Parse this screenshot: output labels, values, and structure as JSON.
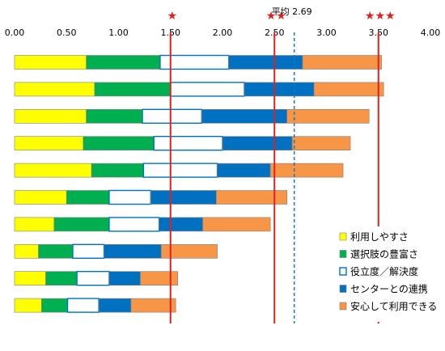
{
  "chart_data": {
    "type": "bar",
    "orientation": "horizontal",
    "stacked": true,
    "xlim": [
      0,
      4
    ],
    "x_ticks": [
      "0.00",
      "0.50",
      "1.00",
      "1.50",
      "2.00",
      "2.50",
      "3.00",
      "3.50",
      "4.00"
    ],
    "grid": false,
    "legend_position": "bottom-right",
    "categories": [
      "",
      "",
      "",
      "",
      "",
      "",
      "",
      "",
      "",
      ""
    ],
    "series": [
      {
        "name": "利用しやすさ",
        "color": "#ffff00",
        "fill": "solid",
        "values": [
          0.69,
          0.77,
          0.69,
          0.66,
          0.74,
          0.5,
          0.38,
          0.23,
          0.3,
          0.26
        ]
      },
      {
        "name": "選択肢の豊富さ",
        "color": "#00b050",
        "fill": "solid",
        "values": [
          0.71,
          0.73,
          0.54,
          0.68,
          0.5,
          0.41,
          0.53,
          0.33,
          0.3,
          0.25
        ]
      },
      {
        "name": "役立度／解決度",
        "color": "#0070c0",
        "fill": "outline",
        "values": [
          0.66,
          0.71,
          0.57,
          0.66,
          0.71,
          0.4,
          0.48,
          0.3,
          0.31,
          0.3
        ]
      },
      {
        "name": "センターとの連携",
        "color": "#0070c0",
        "fill": "solid",
        "values": [
          0.71,
          0.67,
          0.82,
          0.67,
          0.51,
          0.63,
          0.42,
          0.55,
          0.3,
          0.31
        ]
      },
      {
        "name": "安心して利用できる",
        "color": "#f79646",
        "fill": "solid",
        "values": [
          0.76,
          0.67,
          0.79,
          0.56,
          0.7,
          0.68,
          0.65,
          0.54,
          0.36,
          0.43
        ]
      }
    ],
    "reference_lines": [
      {
        "value": 1.5,
        "color": "#e02020",
        "style": "solid",
        "label": "★"
      },
      {
        "value": 2.5,
        "color": "#e02020",
        "style": "solid",
        "label": "★★"
      },
      {
        "value": 3.5,
        "color": "#e02020",
        "style": "solid",
        "label": "★★★"
      },
      {
        "value": 2.69,
        "color": "#1f77b4",
        "style": "dashed",
        "label": "平均 2.69"
      }
    ]
  }
}
